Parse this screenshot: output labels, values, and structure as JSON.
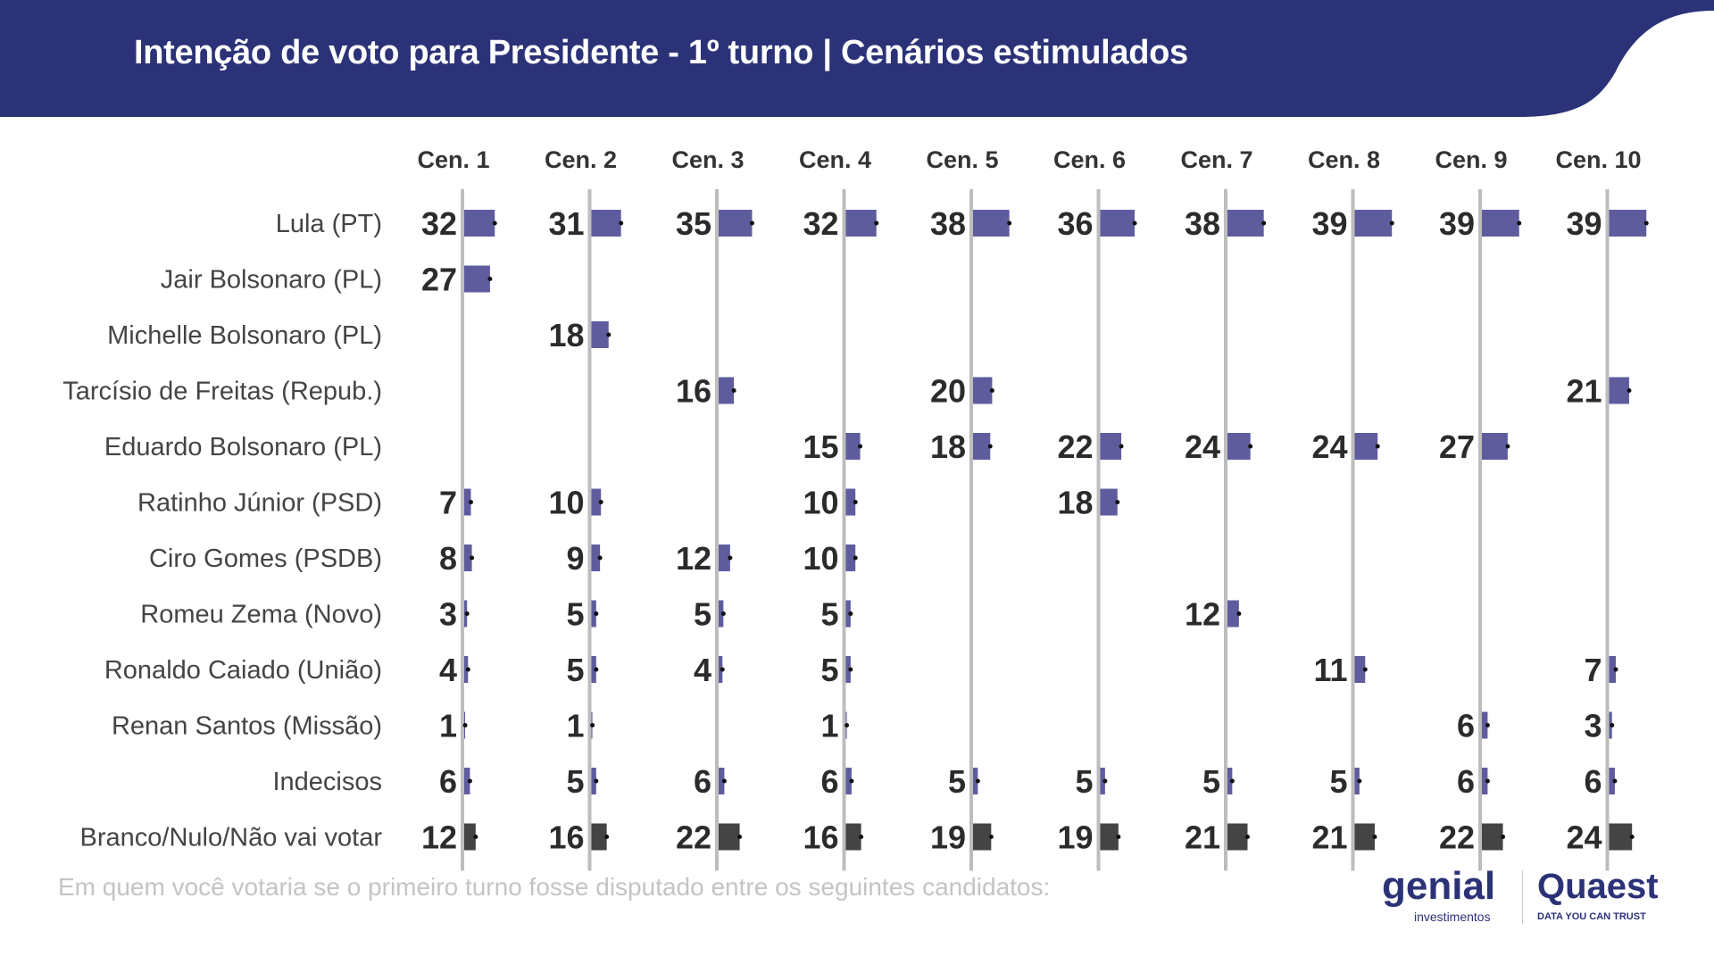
{
  "header": {
    "title": "Intenção de voto para Presidente - 1º turno | Cenários estimulados"
  },
  "footnote": "Em quem você votaria se o primeiro turno fosse disputado entre os seguintes candidatos:",
  "logos": {
    "genial": "genial",
    "genial_sub": "investimentos",
    "quaest": "Quaest",
    "quaest_sub": "DATA YOU CAN TRUST"
  },
  "colors": {
    "header": "#2b3277",
    "bar": "#5f5c9e",
    "bar_blank": "#444444",
    "gridline": "#bdbdbd"
  },
  "chart_data": {
    "type": "bar",
    "title": "Intenção de voto para Presidente - 1º turno | Cenários estimulados",
    "unit": "%",
    "categories": [
      "Cen. 1",
      "Cen. 2",
      "Cen. 3",
      "Cen. 4",
      "Cen. 5",
      "Cen. 6",
      "Cen. 7",
      "Cen. 8",
      "Cen. 9",
      "Cen. 10"
    ],
    "series": [
      {
        "name": "Lula (PT)",
        "values": [
          32,
          31,
          35,
          32,
          38,
          36,
          38,
          39,
          39,
          39
        ]
      },
      {
        "name": "Jair Bolsonaro (PL)",
        "values": [
          27,
          null,
          null,
          null,
          null,
          null,
          null,
          null,
          null,
          null
        ]
      },
      {
        "name": "Michelle Bolsonaro (PL)",
        "values": [
          null,
          18,
          null,
          null,
          null,
          null,
          null,
          null,
          null,
          null
        ]
      },
      {
        "name": "Tarcísio de Freitas (Repub.)",
        "values": [
          null,
          null,
          16,
          null,
          20,
          null,
          null,
          null,
          null,
          21
        ]
      },
      {
        "name": "Eduardo Bolsonaro (PL)",
        "values": [
          null,
          null,
          null,
          15,
          18,
          22,
          24,
          24,
          27,
          null
        ]
      },
      {
        "name": "Ratinho Júnior (PSD)",
        "values": [
          7,
          10,
          null,
          10,
          null,
          18,
          null,
          null,
          null,
          null
        ]
      },
      {
        "name": "Ciro Gomes (PSDB)",
        "values": [
          8,
          9,
          12,
          10,
          null,
          null,
          null,
          null,
          null,
          null
        ]
      },
      {
        "name": "Romeu Zema (Novo)",
        "values": [
          3,
          5,
          5,
          5,
          null,
          null,
          12,
          null,
          null,
          null
        ]
      },
      {
        "name": "Ronaldo Caiado (União)",
        "values": [
          4,
          5,
          4,
          5,
          null,
          null,
          null,
          11,
          null,
          7
        ]
      },
      {
        "name": "Renan Santos (Missão)",
        "values": [
          1,
          1,
          null,
          1,
          null,
          null,
          null,
          null,
          6,
          3
        ]
      },
      {
        "name": "Indecisos",
        "values": [
          6,
          5,
          6,
          6,
          5,
          5,
          5,
          5,
          6,
          6
        ]
      },
      {
        "name": "Branco/Nulo/Não vai votar",
        "values": [
          12,
          16,
          22,
          16,
          19,
          19,
          21,
          21,
          22,
          24
        ]
      }
    ]
  }
}
